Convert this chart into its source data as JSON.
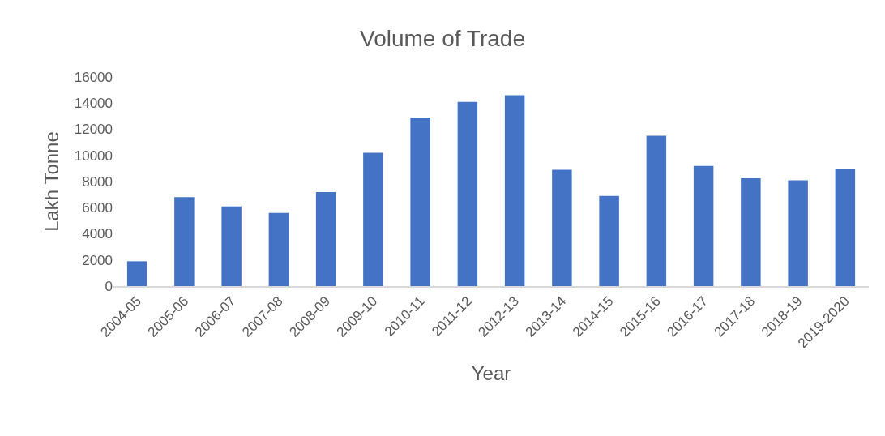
{
  "chart_data": {
    "type": "bar",
    "title": "Volume of Trade",
    "xlabel": "Year",
    "ylabel": "Lakh Tonne",
    "categories": [
      "2004-05",
      "2005-06",
      "2006-07",
      "2007-08",
      "2008-09",
      "2009-10",
      "2010-11",
      "2011-12",
      "2012-13",
      "2013-14",
      "2014-15",
      "2015-16",
      "2016-17",
      "2017-18",
      "2018-19",
      "2019-2020"
    ],
    "values": [
      1900,
      6800,
      6100,
      5600,
      7200,
      10200,
      12900,
      14100,
      14600,
      8900,
      6900,
      11500,
      9200,
      8250,
      8100,
      9000
    ],
    "color": "#4472c4",
    "ylim": [
      0,
      16000
    ],
    "yticks": [
      0,
      2000,
      4000,
      6000,
      8000,
      10000,
      12000,
      14000,
      16000
    ],
    "grid": false
  }
}
